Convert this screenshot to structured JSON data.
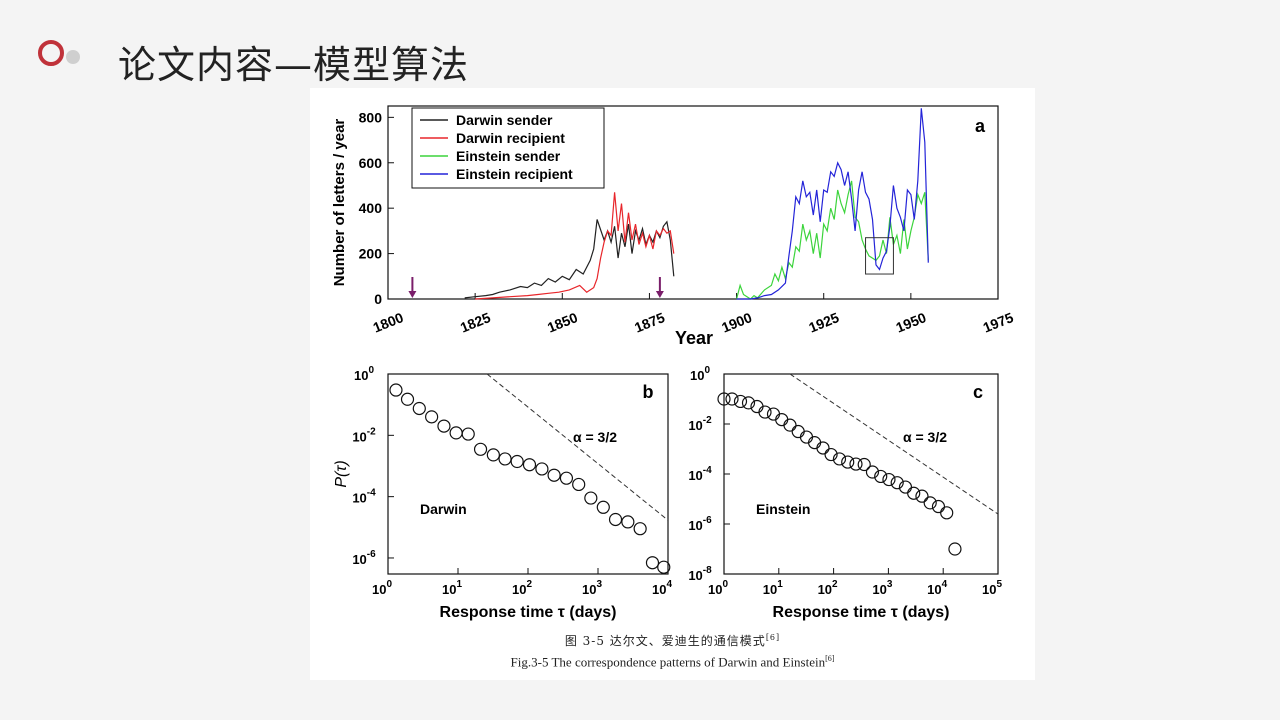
{
  "slide": {
    "title": "论文内容—模型算法"
  },
  "caption": {
    "cn": "图 3-5 达尔文、爱迪生的通信模式",
    "en": "Fig.3-5 The correspondence patterns of Darwin and Einstein",
    "ref": "[6]"
  },
  "colors": {
    "darwin_sender": "#222222",
    "darwin_recipient": "#e8262b",
    "einstein_sender": "#3cd43c",
    "einstein_recipient": "#2424d8",
    "accent_ring": "#c0323a"
  },
  "chart_data": [
    {
      "type": "line",
      "panel_letter": "a",
      "xlabel": "Year",
      "ylabel": "Number of letters / year",
      "xlim": [
        1800,
        1975
      ],
      "ylim": [
        0,
        850
      ],
      "xticks": [
        "1800",
        "1825",
        "1850",
        "1875",
        "1900",
        "1925",
        "1950",
        "1975"
      ],
      "yticks": [
        "0",
        "200",
        "400",
        "600",
        "800"
      ],
      "legend": "top-left",
      "markers": [
        1807,
        1878
      ],
      "inset_box": [
        1937,
        1945,
        110,
        270
      ],
      "series": [
        {
          "name": "Darwin sender",
          "x": [
            1822,
            1825,
            1828,
            1830,
            1832,
            1835,
            1838,
            1840,
            1842,
            1844,
            1846,
            1848,
            1850,
            1852,
            1854,
            1856,
            1858,
            1859,
            1860,
            1862,
            1863,
            1864,
            1865,
            1866,
            1867,
            1868,
            1869,
            1870,
            1871,
            1872,
            1873,
            1874,
            1875,
            1876,
            1877,
            1878,
            1879,
            1880,
            1881,
            1882
          ],
          "y": [
            5,
            10,
            15,
            20,
            30,
            40,
            55,
            50,
            70,
            60,
            90,
            75,
            100,
            85,
            130,
            110,
            170,
            220,
            350,
            260,
            300,
            250,
            320,
            180,
            290,
            230,
            330,
            200,
            300,
            260,
            310,
            240,
            280,
            250,
            300,
            270,
            320,
            340,
            260,
            100
          ]
        },
        {
          "name": "Darwin recipient",
          "x": [
            1825,
            1830,
            1835,
            1840,
            1843,
            1846,
            1849,
            1852,
            1855,
            1857,
            1859,
            1860,
            1861,
            1862,
            1863,
            1864,
            1865,
            1866,
            1867,
            1868,
            1869,
            1870,
            1871,
            1872,
            1873,
            1874,
            1875,
            1876,
            1877,
            1878,
            1879,
            1880,
            1881,
            1882
          ],
          "y": [
            0,
            5,
            10,
            15,
            20,
            25,
            30,
            40,
            60,
            30,
            50,
            90,
            180,
            250,
            300,
            280,
            470,
            300,
            420,
            250,
            380,
            260,
            330,
            240,
            290,
            230,
            280,
            220,
            300,
            280,
            310,
            290,
            300,
            200
          ]
        },
        {
          "name": "Einstein sender",
          "x": [
            1900,
            1901,
            1902,
            1903,
            1904,
            1905,
            1906,
            1908,
            1910,
            1911,
            1912,
            1913,
            1914,
            1915,
            1916,
            1917,
            1918,
            1919,
            1920,
            1921,
            1922,
            1923,
            1924,
            1925,
            1926,
            1927,
            1928,
            1929,
            1930,
            1931,
            1932,
            1933,
            1934,
            1935,
            1936,
            1937,
            1938,
            1939,
            1940,
            1941,
            1942,
            1943,
            1944,
            1945,
            1946,
            1947,
            1948,
            1949,
            1950,
            1951,
            1952,
            1953,
            1954,
            1955
          ],
          "y": [
            0,
            60,
            20,
            10,
            0,
            15,
            5,
            40,
            60,
            110,
            80,
            140,
            90,
            160,
            140,
            230,
            210,
            330,
            260,
            300,
            200,
            290,
            180,
            330,
            300,
            400,
            350,
            480,
            420,
            380,
            460,
            520,
            360,
            340,
            260,
            220,
            190,
            180,
            170,
            190,
            260,
            200,
            360,
            240,
            280,
            200,
            350,
            220,
            300,
            360,
            460,
            420,
            470,
            170
          ]
        },
        {
          "name": "Einstein recipient",
          "x": [
            1900,
            1902,
            1904,
            1906,
            1908,
            1910,
            1912,
            1914,
            1915,
            1916,
            1917,
            1918,
            1919,
            1920,
            1921,
            1922,
            1923,
            1924,
            1925,
            1926,
            1927,
            1928,
            1929,
            1930,
            1931,
            1932,
            1933,
            1934,
            1935,
            1936,
            1937,
            1938,
            1939,
            1940,
            1941,
            1942,
            1943,
            1944,
            1945,
            1946,
            1947,
            1948,
            1949,
            1950,
            1951,
            1952,
            1953,
            1954,
            1955
          ],
          "y": [
            0,
            0,
            0,
            5,
            15,
            20,
            40,
            70,
            190,
            300,
            450,
            420,
            520,
            450,
            470,
            370,
            480,
            340,
            480,
            470,
            560,
            540,
            600,
            570,
            500,
            560,
            440,
            300,
            480,
            560,
            470,
            440,
            350,
            150,
            130,
            180,
            210,
            320,
            500,
            400,
            360,
            300,
            480,
            460,
            350,
            520,
            840,
            690,
            160
          ]
        }
      ]
    },
    {
      "type": "scatter",
      "panel_letter": "b",
      "xlabel": "Response time τ (days)",
      "ylabel": "P(τ)",
      "scale": "log-log",
      "xlim": [
        1,
        10000
      ],
      "ylim": [
        3e-07,
        1
      ],
      "xticks": [
        "10⁰",
        "10¹",
        "10²",
        "10³",
        "10⁴"
      ],
      "yticks": [
        "10⁰",
        "10⁻²",
        "10⁻⁴",
        "10⁻⁶"
      ],
      "label": "Darwin",
      "annotation": "α = 3/2",
      "guide_line": {
        "x": [
          26,
          10000
        ],
        "y": [
          1,
          1.7e-05
        ]
      },
      "series": [
        {
          "name": "",
          "x": [
            1.3,
            1.9,
            2.8,
            4.2,
            6.3,
            9.4,
            14,
            21,
            32,
            47,
            70,
            105,
            158,
            236,
            354,
            530,
            790,
            1190,
            1780,
            2670,
            4000,
            6000,
            8700
          ],
          "y": [
            0.3,
            0.15,
            0.075,
            0.04,
            0.02,
            0.012,
            0.011,
            0.0035,
            0.0023,
            0.0017,
            0.0014,
            0.0011,
            0.0008,
            0.0005,
            0.0004,
            0.00025,
            9e-05,
            4.5e-05,
            1.8e-05,
            1.5e-05,
            9e-06,
            7e-07,
            5e-07
          ]
        }
      ]
    },
    {
      "type": "scatter",
      "panel_letter": "c",
      "xlabel": "Response time τ (days)",
      "ylabel": "",
      "scale": "log-log",
      "xlim": [
        1,
        100000
      ],
      "ylim": [
        1e-08,
        1
      ],
      "xticks": [
        "10⁰",
        "10¹",
        "10²",
        "10³",
        "10⁴",
        "10⁵"
      ],
      "yticks": [
        "10⁰",
        "10⁻²",
        "10⁻⁴",
        "10⁻⁶",
        "10⁻⁸"
      ],
      "label": "Einstein",
      "annotation": "α = 3/2",
      "guide_line": {
        "x": [
          16,
          100000
        ],
        "y": [
          1,
          2.5e-06
        ]
      },
      "series": [
        {
          "name": "",
          "x": [
            1.0,
            1.4,
            2.0,
            2.8,
            4.0,
            5.6,
            8,
            11.3,
            16,
            22.6,
            32,
            45,
            64,
            90,
            128,
            181,
            256,
            362,
            512,
            724,
            1024,
            1448,
            2048,
            2896,
            4096,
            5792,
            8192,
            11585,
            16384
          ],
          "y": [
            0.1,
            0.1,
            0.08,
            0.07,
            0.05,
            0.03,
            0.025,
            0.015,
            0.009,
            0.005,
            0.003,
            0.0018,
            0.0011,
            0.0006,
            0.0004,
            0.0003,
            0.00025,
            0.00024,
            0.00012,
            8e-05,
            6e-05,
            4.5e-05,
            3e-05,
            1.7e-05,
            1.3e-05,
            7e-06,
            5e-06,
            2.8e-06,
            1e-07
          ]
        }
      ]
    }
  ]
}
